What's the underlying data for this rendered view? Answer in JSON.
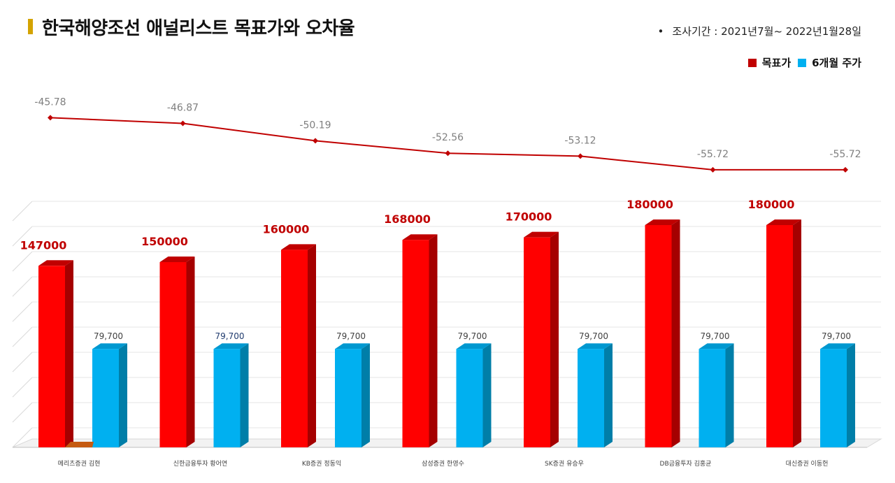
{
  "title": "한국해양조선 애널리스트 목표가와 오차율",
  "period": {
    "bullet": "•",
    "text": "조사기간 : 2021년7월~ 2022년1월28일"
  },
  "legend": [
    {
      "label": "목표가",
      "color": "#c00000"
    },
    {
      "label": "6개월 주가",
      "color": "#00b0f0"
    }
  ],
  "chart_data": [
    {
      "type": "line",
      "title": "",
      "categories": [
        "메리츠증권 김현",
        "신한금융투자 황어연",
        "KB증권 정동익",
        "삼성증권 한영수",
        "SK증권 유승우",
        "DB금융투자 김홍균",
        "대신증권 이동헌"
      ],
      "series": [
        {
          "values": [
            -45.78,
            -46.87,
            -50.19,
            -52.56,
            -53.12,
            -55.72,
            -55.72
          ],
          "labels": [
            "-45.78",
            "-46.87",
            "-50.19",
            "-52.56",
            "-53.12",
            "-55.72",
            "-55.72"
          ],
          "color": "#c00000"
        }
      ],
      "ylim": [
        -60,
        -40
      ]
    },
    {
      "type": "bar",
      "title": "",
      "categories": [
        "메리츠증권 김현",
        "신한금융투자 황어연",
        "KB증권 정동익",
        "삼성증권 한영수",
        "SK증권 유승우",
        "DB금융투자 김홍균",
        "대신증권 이동헌"
      ],
      "series": [
        {
          "name": "목표가",
          "values": [
            147000,
            150000,
            160000,
            168000,
            170000,
            180000,
            180000
          ],
          "labels": [
            "147000",
            "150000",
            "160000",
            "168000",
            "170000",
            "180000",
            "180000"
          ],
          "color": "#ff0000"
        },
        {
          "name": "6개월 주가",
          "values": [
            79700,
            79700,
            79700,
            79700,
            79700,
            79700,
            79700
          ],
          "labels": [
            "79,700",
            "79,700",
            "79,700",
            "79,700",
            "79,700",
            "79,700",
            "79,700"
          ],
          "color": "#00b0f0"
        }
      ],
      "ylim": [
        0,
        180000
      ],
      "grid": true
    }
  ]
}
